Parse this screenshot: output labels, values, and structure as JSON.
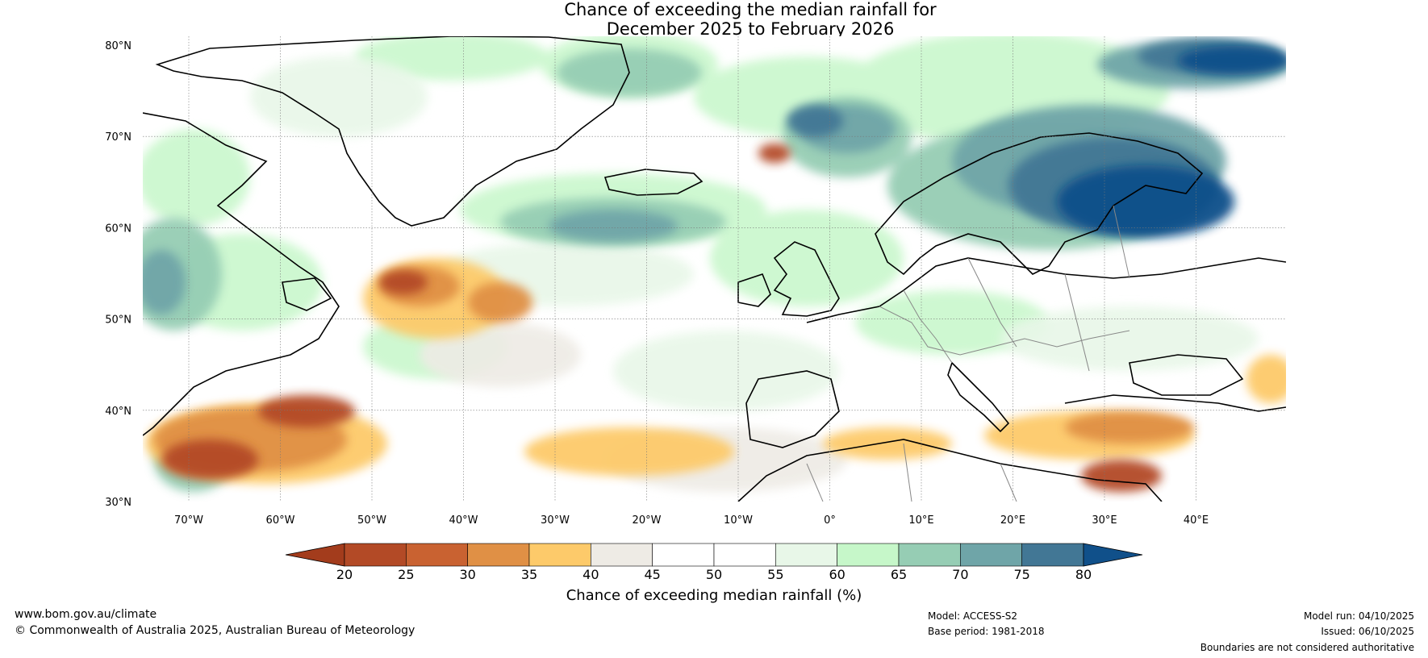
{
  "title": {
    "line1": "Chance of exceeding the median rainfall for",
    "line2": "December 2025 to February 2026"
  },
  "axes": {
    "lat_labels": [
      "80°N",
      "70°N",
      "60°N",
      "50°N",
      "40°N",
      "30°N"
    ],
    "lon_labels": [
      "70°W",
      "60°W",
      "50°W",
      "40°W",
      "30°W",
      "20°W",
      "10°W",
      "0°",
      "10°E",
      "20°E",
      "30°E",
      "40°E"
    ]
  },
  "colorbar": {
    "ticks": [
      "20",
      "25",
      "30",
      "35",
      "40",
      "45",
      "50",
      "55",
      "60",
      "65",
      "70",
      "75",
      "80"
    ],
    "colors": [
      "#a33c1c",
      "#b34a26",
      "#c96231",
      "#e09045",
      "#fdca6a",
      "#eeebe5",
      "#ffffff",
      "#ffffff",
      "#e8f7e8",
      "#c6f7c9",
      "#96cdb4",
      "#6fa5a8",
      "#427795",
      "#10508a"
    ],
    "label": "Chance of exceeding median rainfall (%)"
  },
  "footer": {
    "website": "www.bom.gov.au/climate",
    "copyright": "© Commonwealth of Australia 2025, Australian Bureau of Meteorology",
    "model": "Model: ACCESS-S2",
    "base_period": "Base period: 1981-2018",
    "model_run": "Model run: 04/10/2025",
    "issued": "Issued: 06/10/2025",
    "disclaimer": "Boundaries are not considered authoritative"
  }
}
